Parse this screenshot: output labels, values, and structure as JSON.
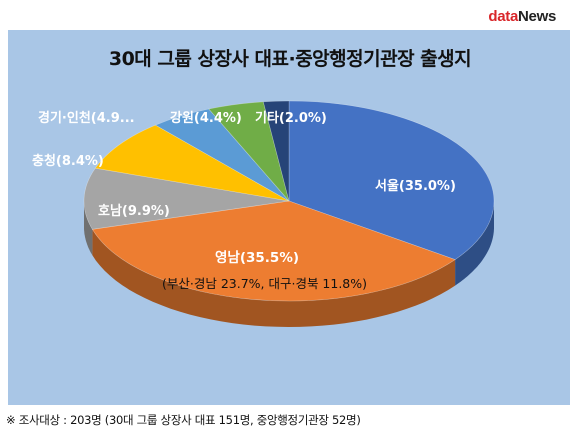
{
  "brand": {
    "part1": "data",
    "part2": "News"
  },
  "chart_data": {
    "type": "pie",
    "title": "30대 그룹 상장사 대표·중앙행정기관장 출생지",
    "slices": [
      {
        "label": "서울(35.0%)",
        "value": 35.0,
        "color": "#4472c4"
      },
      {
        "label": "영남(35.5%)",
        "value": 35.5,
        "color": "#ed7d31",
        "sublabel": "(부산·경남 23.7%, 대구·경북 11.8%)"
      },
      {
        "label": "호남(9.9%)",
        "value": 9.9,
        "color": "#a5a5a5"
      },
      {
        "label": "충청(8.4%)",
        "value": 8.4,
        "color": "#ffc000"
      },
      {
        "label": "경기·인천(4.9...",
        "value": 4.9,
        "color": "#5b9bd5"
      },
      {
        "label": "강원(4.4%)",
        "value": 4.4,
        "color": "#70ad47"
      },
      {
        "label": "기타(2.0%)",
        "value": 2.0,
        "color": "#264478"
      }
    ]
  },
  "footer": "※ 조사대상 : 203명 (30대 그룹 상장사 대표 151명, 중앙행정기관장 52명)"
}
